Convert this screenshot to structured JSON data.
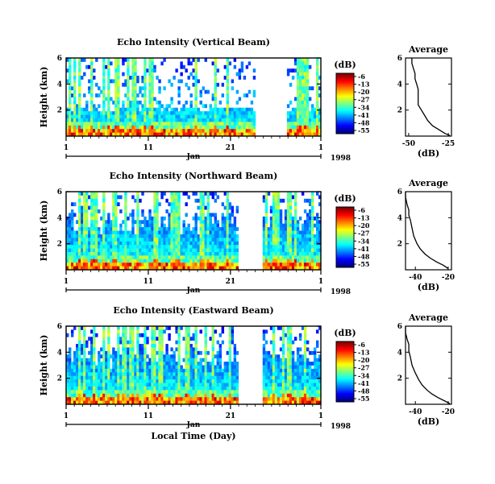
{
  "chart_data": [
    {
      "type": "heatmap",
      "title": "Echo Intensity (Vertical Beam)",
      "ylabel": "Height (km)",
      "y_ticks": [
        "6",
        "4",
        "2"
      ],
      "x_ticks": [
        "1",
        "11",
        "21",
        "1"
      ],
      "month_label": "Jan",
      "year_label": "1998",
      "colorbar": {
        "label": "(dB)",
        "ticks": [
          "-6",
          "-13",
          "-20",
          "-27",
          "-34",
          "-41",
          "-48",
          "-55"
        ]
      },
      "data_gap_days": [
        24,
        28
      ],
      "average_profile": {
        "title": "Average",
        "xlabel": "(dB)",
        "x_ticks": [
          "-50",
          "-25"
        ],
        "y_ticks": [
          "6",
          "4",
          "2"
        ],
        "xlim": [
          -52,
          -23
        ],
        "ylim": [
          0,
          6
        ],
        "points": [
          [
            -48,
            6.0
          ],
          [
            -48,
            5.6
          ],
          [
            -47,
            5.2
          ],
          [
            -46,
            4.8
          ],
          [
            -46,
            4.4
          ],
          [
            -45,
            4.0
          ],
          [
            -44,
            3.6
          ],
          [
            -44,
            3.2
          ],
          [
            -44,
            2.8
          ],
          [
            -44,
            2.4
          ],
          [
            -42,
            2.0
          ],
          [
            -40,
            1.6
          ],
          [
            -38,
            1.2
          ],
          [
            -35,
            0.8
          ],
          [
            -31,
            0.5
          ],
          [
            -27,
            0.2
          ],
          [
            -24,
            0.05
          ]
        ]
      }
    },
    {
      "type": "heatmap",
      "title": "Echo Intensity (Northward Beam)",
      "ylabel": "Height (km)",
      "y_ticks": [
        "6",
        "4",
        "2"
      ],
      "x_ticks": [
        "1",
        "11",
        "21",
        "1"
      ],
      "month_label": "Jan",
      "year_label": "1998",
      "colorbar": {
        "label": "(dB)",
        "ticks": [
          "-6",
          "-13",
          "-20",
          "-27",
          "-34",
          "-41",
          "-48",
          "-55"
        ]
      },
      "data_gap_days": [
        22,
        25
      ],
      "average_profile": {
        "title": "Average",
        "xlabel": "(dB)",
        "x_ticks": [
          "-40",
          "-20"
        ],
        "y_ticks": [
          "6",
          "4",
          "2"
        ],
        "xlim": [
          -46,
          -18
        ],
        "ylim": [
          0,
          6
        ],
        "points": [
          [
            -46,
            6.0
          ],
          [
            -46,
            5.6
          ],
          [
            -45,
            5.0
          ],
          [
            -44,
            4.6
          ],
          [
            -44,
            4.2
          ],
          [
            -43,
            3.8
          ],
          [
            -42,
            3.2
          ],
          [
            -41,
            2.6
          ],
          [
            -39,
            2.0
          ],
          [
            -37,
            1.6
          ],
          [
            -34,
            1.2
          ],
          [
            -31,
            0.9
          ],
          [
            -27,
            0.6
          ],
          [
            -23,
            0.35
          ],
          [
            -20,
            0.1
          ]
        ]
      }
    },
    {
      "type": "heatmap",
      "title": "Echo Intensity (Eastward Beam)",
      "ylabel": "Height (km)",
      "y_ticks": [
        "6",
        "4",
        "2"
      ],
      "x_ticks": [
        "1",
        "11",
        "21",
        "1"
      ],
      "month_label": "Jan",
      "year_label": "1998",
      "xlabel": "Local Time (Day)",
      "colorbar": {
        "label": "(dB)",
        "ticks": [
          "-6",
          "-13",
          "-20",
          "-27",
          "-34",
          "-41",
          "-48",
          "-55"
        ]
      },
      "data_gap_days": [
        22,
        25
      ],
      "average_profile": {
        "title": "Average",
        "xlabel": "(dB)",
        "x_ticks": [
          "-40",
          "-20"
        ],
        "y_ticks": [
          "6",
          "4",
          "2"
        ],
        "xlim": [
          -46,
          -18
        ],
        "ylim": [
          0,
          6
        ],
        "points": [
          [
            -46,
            6.0
          ],
          [
            -46,
            5.5
          ],
          [
            -45,
            5.0
          ],
          [
            -44,
            4.6
          ],
          [
            -44,
            4.1
          ],
          [
            -43,
            3.6
          ],
          [
            -42,
            3.0
          ],
          [
            -40,
            2.4
          ],
          [
            -38,
            1.9
          ],
          [
            -36,
            1.5
          ],
          [
            -33,
            1.1
          ],
          [
            -30,
            0.8
          ],
          [
            -26,
            0.5
          ],
          [
            -22,
            0.25
          ],
          [
            -19,
            0.05
          ]
        ]
      }
    }
  ]
}
